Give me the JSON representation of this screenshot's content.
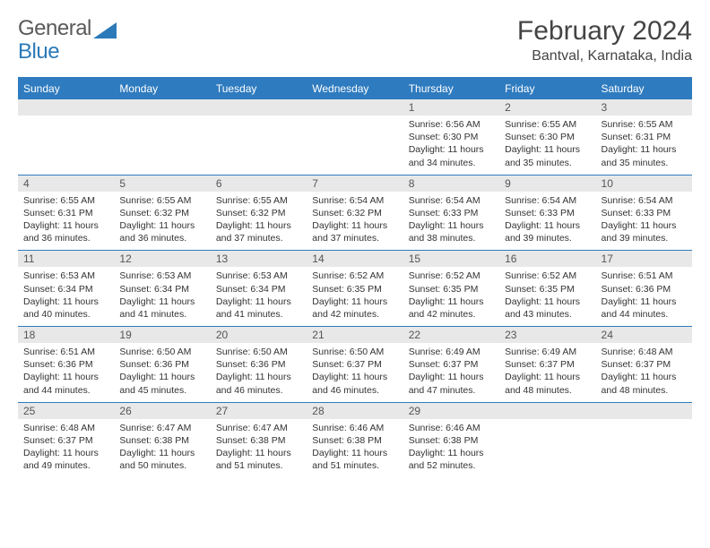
{
  "logo": {
    "word1": "General",
    "word2": "Blue"
  },
  "title": "February 2024",
  "location": "Bantval, Karnataka, India",
  "colors": {
    "header_bg": "#2f7bbf",
    "header_text": "#ffffff",
    "daynum_bg": "#e8e8e8",
    "border": "#2f7bbf",
    "logo_gray": "#5a5a5a",
    "logo_blue": "#2a7ab9"
  },
  "weekdays": [
    "Sunday",
    "Monday",
    "Tuesday",
    "Wednesday",
    "Thursday",
    "Friday",
    "Saturday"
  ],
  "weeks": [
    [
      null,
      null,
      null,
      null,
      {
        "n": "1",
        "sr": "6:56 AM",
        "ss": "6:30 PM",
        "dl": "11 hours and 34 minutes."
      },
      {
        "n": "2",
        "sr": "6:55 AM",
        "ss": "6:30 PM",
        "dl": "11 hours and 35 minutes."
      },
      {
        "n": "3",
        "sr": "6:55 AM",
        "ss": "6:31 PM",
        "dl": "11 hours and 35 minutes."
      }
    ],
    [
      {
        "n": "4",
        "sr": "6:55 AM",
        "ss": "6:31 PM",
        "dl": "11 hours and 36 minutes."
      },
      {
        "n": "5",
        "sr": "6:55 AM",
        "ss": "6:32 PM",
        "dl": "11 hours and 36 minutes."
      },
      {
        "n": "6",
        "sr": "6:55 AM",
        "ss": "6:32 PM",
        "dl": "11 hours and 37 minutes."
      },
      {
        "n": "7",
        "sr": "6:54 AM",
        "ss": "6:32 PM",
        "dl": "11 hours and 37 minutes."
      },
      {
        "n": "8",
        "sr": "6:54 AM",
        "ss": "6:33 PM",
        "dl": "11 hours and 38 minutes."
      },
      {
        "n": "9",
        "sr": "6:54 AM",
        "ss": "6:33 PM",
        "dl": "11 hours and 39 minutes."
      },
      {
        "n": "10",
        "sr": "6:54 AM",
        "ss": "6:33 PM",
        "dl": "11 hours and 39 minutes."
      }
    ],
    [
      {
        "n": "11",
        "sr": "6:53 AM",
        "ss": "6:34 PM",
        "dl": "11 hours and 40 minutes."
      },
      {
        "n": "12",
        "sr": "6:53 AM",
        "ss": "6:34 PM",
        "dl": "11 hours and 41 minutes."
      },
      {
        "n": "13",
        "sr": "6:53 AM",
        "ss": "6:34 PM",
        "dl": "11 hours and 41 minutes."
      },
      {
        "n": "14",
        "sr": "6:52 AM",
        "ss": "6:35 PM",
        "dl": "11 hours and 42 minutes."
      },
      {
        "n": "15",
        "sr": "6:52 AM",
        "ss": "6:35 PM",
        "dl": "11 hours and 42 minutes."
      },
      {
        "n": "16",
        "sr": "6:52 AM",
        "ss": "6:35 PM",
        "dl": "11 hours and 43 minutes."
      },
      {
        "n": "17",
        "sr": "6:51 AM",
        "ss": "6:36 PM",
        "dl": "11 hours and 44 minutes."
      }
    ],
    [
      {
        "n": "18",
        "sr": "6:51 AM",
        "ss": "6:36 PM",
        "dl": "11 hours and 44 minutes."
      },
      {
        "n": "19",
        "sr": "6:50 AM",
        "ss": "6:36 PM",
        "dl": "11 hours and 45 minutes."
      },
      {
        "n": "20",
        "sr": "6:50 AM",
        "ss": "6:36 PM",
        "dl": "11 hours and 46 minutes."
      },
      {
        "n": "21",
        "sr": "6:50 AM",
        "ss": "6:37 PM",
        "dl": "11 hours and 46 minutes."
      },
      {
        "n": "22",
        "sr": "6:49 AM",
        "ss": "6:37 PM",
        "dl": "11 hours and 47 minutes."
      },
      {
        "n": "23",
        "sr": "6:49 AM",
        "ss": "6:37 PM",
        "dl": "11 hours and 48 minutes."
      },
      {
        "n": "24",
        "sr": "6:48 AM",
        "ss": "6:37 PM",
        "dl": "11 hours and 48 minutes."
      }
    ],
    [
      {
        "n": "25",
        "sr": "6:48 AM",
        "ss": "6:37 PM",
        "dl": "11 hours and 49 minutes."
      },
      {
        "n": "26",
        "sr": "6:47 AM",
        "ss": "6:38 PM",
        "dl": "11 hours and 50 minutes."
      },
      {
        "n": "27",
        "sr": "6:47 AM",
        "ss": "6:38 PM",
        "dl": "11 hours and 51 minutes."
      },
      {
        "n": "28",
        "sr": "6:46 AM",
        "ss": "6:38 PM",
        "dl": "11 hours and 51 minutes."
      },
      {
        "n": "29",
        "sr": "6:46 AM",
        "ss": "6:38 PM",
        "dl": "11 hours and 52 minutes."
      },
      null,
      null
    ]
  ],
  "labels": {
    "sunrise": "Sunrise: ",
    "sunset": "Sunset: ",
    "daylight": "Daylight: "
  }
}
